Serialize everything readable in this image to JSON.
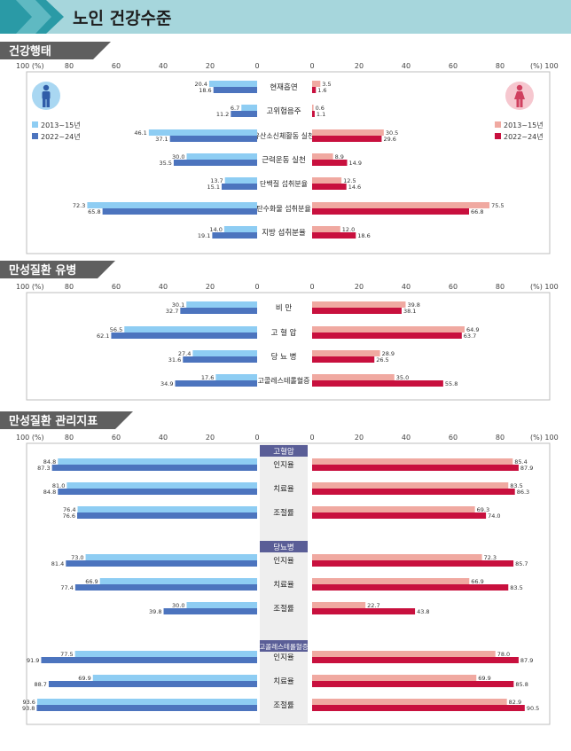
{
  "page_title": "노인 건강수준",
  "units": {
    "left": "100 (%)",
    "right": "(%) 100"
  },
  "ticks": [
    "80",
    "60",
    "40",
    "20",
    "0"
  ],
  "ticks_right": [
    "0",
    "20",
    "40",
    "60",
    "80"
  ],
  "legend": {
    "period1": "2013~15년",
    "period2": "2022~24년"
  },
  "icons": {
    "male": "male-person-icon",
    "female": "female-person-icon"
  },
  "colors": {
    "male_2013": "#8ECDF3",
    "male_2022": "#4C74BE",
    "female_2013": "#F0A9A1",
    "female_2022": "#C8103E",
    "header": "#9DD1D8",
    "section_tab": "#5F5F5F"
  },
  "chart_data": [
    {
      "type": "bar",
      "title": "건강행태",
      "categories": [
        "현재흡연",
        "고위험음주",
        "유산소신체활동 실천",
        "근력운동 실천",
        "단백질 섭취분율",
        "탄수화물 섭취분율",
        "지방 섭취분율"
      ],
      "xlim": [
        0,
        100
      ],
      "series": [
        {
          "name": "2013~15년",
          "values": [
            20.4,
            6.7,
            46.1,
            30.0,
            13.7,
            72.3,
            14.0
          ],
          "labels": [
            "20.4",
            "6.7",
            "46.1",
            "30.0",
            "13.7",
            "72.3",
            "14.0"
          ]
        },
        {
          "name": "2022~24년",
          "values": [
            18.6,
            11.2,
            37.1,
            35.5,
            15.1,
            65.8,
            19.1
          ],
          "labels": [
            "18.6",
            "11.2",
            "37.1",
            "35.5",
            "15.1",
            "65.8",
            "19.1"
          ]
        },
        {
          "name": "2013~15년",
          "values": [
            3.5,
            0.6,
            30.5,
            8.9,
            12.5,
            75.5,
            12.0
          ],
          "labels": [
            "3.5",
            "0.6",
            "30.5",
            "8.9",
            "12.5",
            "75.5",
            "12.0"
          ]
        },
        {
          "name": "2022~24년",
          "values": [
            1.6,
            1.1,
            29.6,
            14.9,
            14.6,
            66.8,
            18.6
          ],
          "labels": [
            "1.6",
            "1.1",
            "29.6",
            "14.9",
            "14.6",
            "66.8",
            "18.6"
          ]
        }
      ]
    },
    {
      "type": "bar",
      "title": "만성질환 유병",
      "categories": [
        "비 만",
        "고 혈 압",
        "당 뇨 병",
        "고콜레스테롤혈증"
      ],
      "xlim": [
        0,
        100
      ],
      "series": [
        {
          "name": "2013~15년",
          "values": [
            30.1,
            56.5,
            27.4,
            17.6
          ],
          "labels": [
            "30.1",
            "56.5",
            "27.4",
            "17.6"
          ]
        },
        {
          "name": "2022~24년",
          "values": [
            32.7,
            62.1,
            31.6,
            34.9
          ],
          "labels": [
            "32.7",
            "62.1",
            "31.6",
            "34.9"
          ]
        },
        {
          "name": "2013~15년",
          "values": [
            39.8,
            64.9,
            28.9,
            35.0
          ],
          "labels": [
            "39.8",
            "64.9",
            "28.9",
            "35.0"
          ]
        },
        {
          "name": "2022~24년",
          "values": [
            38.1,
            63.7,
            26.5,
            55.8
          ],
          "labels": [
            "38.1",
            "63.7",
            "26.5",
            "55.8"
          ]
        }
      ]
    },
    {
      "type": "bar",
      "title": "만성질환 관리지표",
      "groups": [
        "고혈압",
        "당뇨병",
        "고콜레스테롤혈증"
      ],
      "categories": [
        "인지율",
        "치료율",
        "조절률",
        "인지율",
        "치료율",
        "조절률",
        "인지율",
        "치료율",
        "조절률"
      ],
      "xlim": [
        0,
        100
      ],
      "series": [
        {
          "name": "2013~15년",
          "values": [
            84.8,
            81.0,
            76.4,
            73.0,
            66.9,
            30.0,
            77.5,
            69.9,
            93.6
          ],
          "labels": [
            "84.8",
            "81.0",
            "76.4",
            "73.0",
            "66.9",
            "30.0",
            "77.5",
            "69.9",
            "93.6"
          ]
        },
        {
          "name": "2022~24년",
          "values": [
            87.3,
            84.8,
            76.6,
            81.4,
            77.4,
            39.8,
            91.9,
            88.7,
            93.8
          ],
          "labels": [
            "87.3",
            "84.8",
            "76.6",
            "81.4",
            "77.4",
            "39.8",
            "91.9",
            "88.7",
            "93.8"
          ]
        },
        {
          "name": "2013~15년",
          "values": [
            85.4,
            83.5,
            69.3,
            72.3,
            66.9,
            22.7,
            78.0,
            69.9,
            82.9
          ],
          "labels": [
            "85.4",
            "83.5",
            "69.3",
            "72.3",
            "66.9",
            "22.7",
            "78.0",
            "69.9",
            "82.9"
          ]
        },
        {
          "name": "2022~24년",
          "values": [
            87.9,
            86.3,
            74.0,
            85.7,
            83.5,
            43.8,
            87.9,
            85.8,
            90.5
          ],
          "labels": [
            "87.9",
            "86.3",
            "74.0",
            "85.7",
            "83.5",
            "43.8",
            "87.9",
            "85.8",
            "90.5"
          ]
        }
      ]
    }
  ]
}
